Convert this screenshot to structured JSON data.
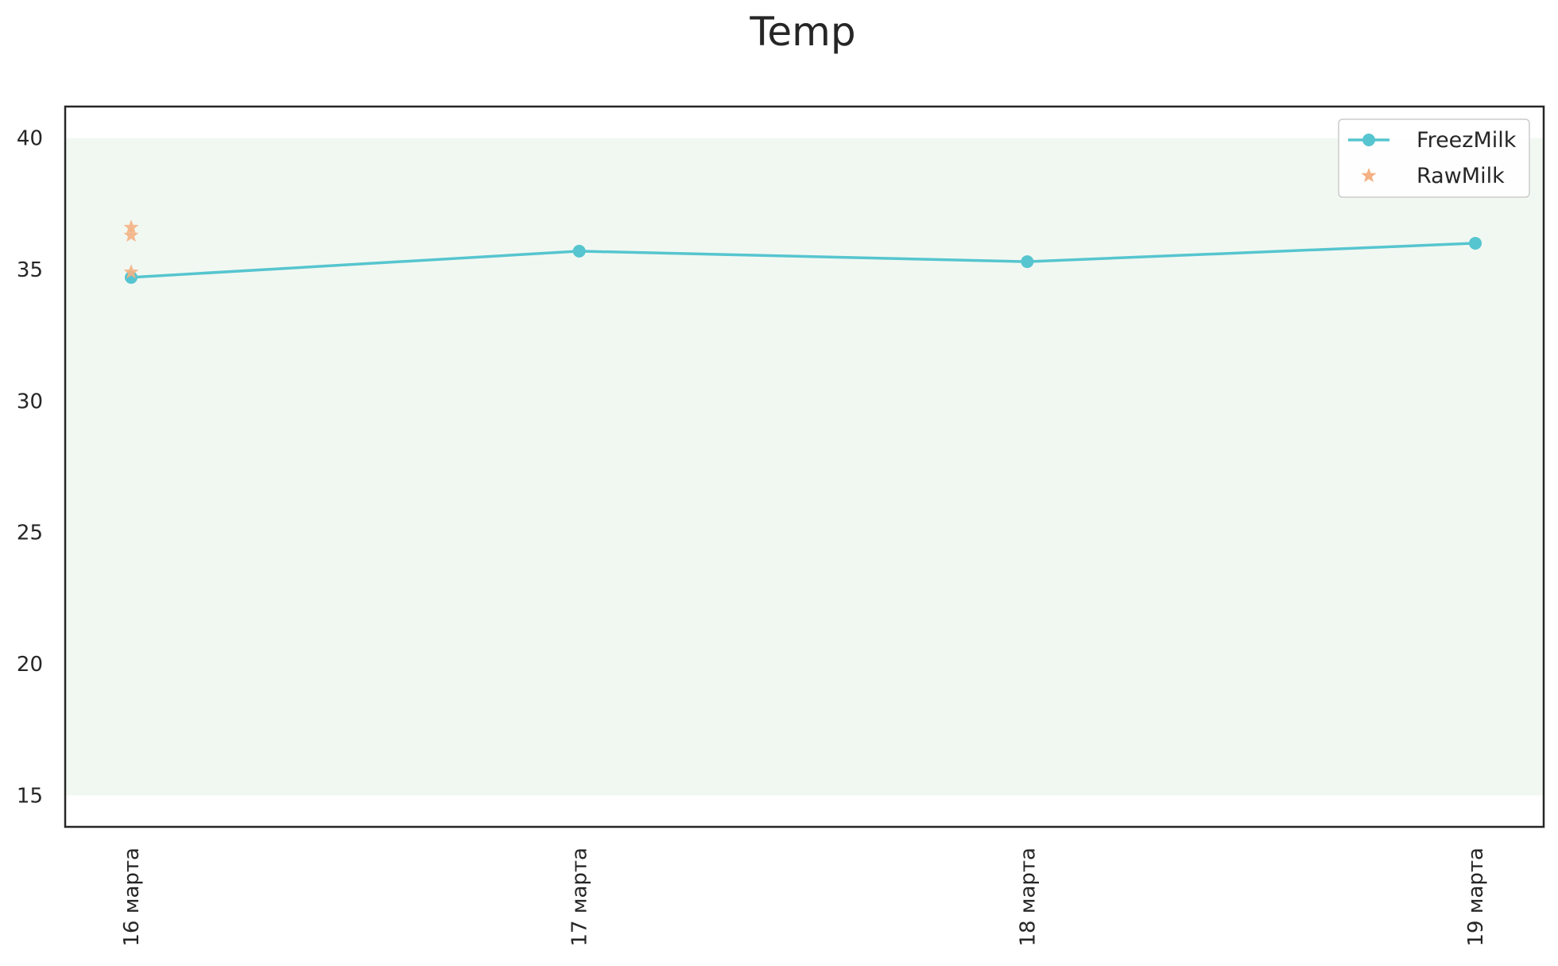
{
  "chart_data": {
    "type": "line",
    "title": "Temp",
    "xlabel": "",
    "ylabel": "",
    "categories": [
      "16 марта",
      "17 марта",
      "18 марта",
      "19 марта"
    ],
    "yticks": [
      15,
      20,
      25,
      30,
      35,
      40
    ],
    "ylim": [
      13.8,
      41.2
    ],
    "band": {
      "from": 15,
      "to": 40,
      "color": "#f1f8f2"
    },
    "grid": false,
    "legend_position": "top-right",
    "series": [
      {
        "name": "FreezMilk",
        "kind": "line-marker",
        "color": "#56c5cf",
        "points": [
          {
            "x": "16 марта",
            "y": 34.7
          },
          {
            "x": "17 марта",
            "y": 35.7
          },
          {
            "x": "18 марта",
            "y": 35.3
          },
          {
            "x": "19 марта",
            "y": 36.0
          }
        ]
      },
      {
        "name": "RawMilk",
        "kind": "scatter-star",
        "color": "#f4b183",
        "points": [
          {
            "x": "16 марта",
            "y": 36.6
          },
          {
            "x": "16 марта",
            "y": 36.3
          },
          {
            "x": "16 марта",
            "y": 34.9
          }
        ]
      }
    ]
  }
}
